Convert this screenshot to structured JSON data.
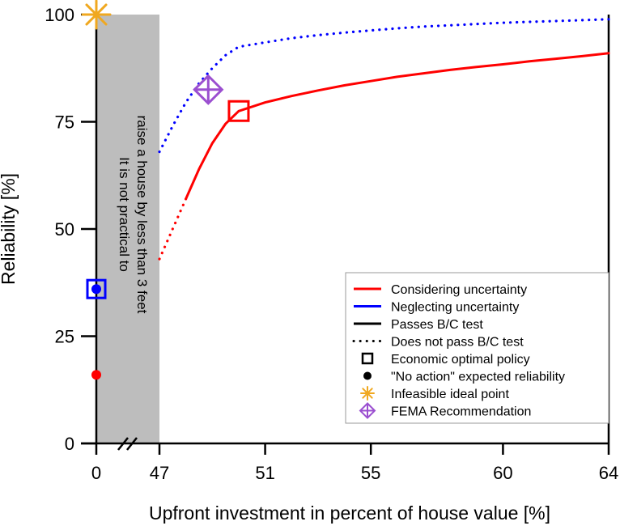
{
  "chart_data": {
    "type": "line",
    "title": "",
    "xlabel": "Upfront investment in percent of house value [%]",
    "ylabel": "Reliability [%]",
    "x_axis_break": "between 0 and 47",
    "x_ticks": [
      "0",
      "47",
      "51",
      "55",
      "60",
      "64"
    ],
    "y_ticks": [
      "0",
      "25",
      "50",
      "75",
      "100"
    ],
    "ylim": [
      0,
      100
    ],
    "shaded_region": {
      "x_range": [
        "0",
        "47"
      ],
      "label_line1": "It is not practical to",
      "label_line2": "raise a house by less than 3 feet",
      "color": "#bdbdbd"
    },
    "series": [
      {
        "name": "Considering uncertainty",
        "color": "#ff0000",
        "segments": [
          {
            "style": "dotted",
            "x": [
              47,
              47.5,
              48
            ],
            "y": [
              43,
              50,
              57
            ]
          },
          {
            "style": "solid",
            "x": [
              48,
              48.5,
              49,
              49.5,
              50,
              51,
              52,
              53,
              54,
              55,
              56,
              57,
              58,
              59,
              60,
              61,
              62,
              63,
              64
            ],
            "y": [
              57,
              64,
              70,
              74.5,
              77.5,
              79.5,
              81,
              82.3,
              83.5,
              84.5,
              85.5,
              86.3,
              87.1,
              87.8,
              88.4,
              89.1,
              89.7,
              90.3,
              91
            ]
          }
        ],
        "no_action_reliability": 16
      },
      {
        "name": "Neglecting uncertainty",
        "color": "#0000ff",
        "segments": [
          {
            "style": "dotted",
            "x": [
              47,
              47.5,
              48,
              48.5,
              49,
              49.5,
              50,
              51,
              52,
              53,
              54,
              55,
              56,
              57,
              58,
              59,
              60,
              61,
              62,
              63,
              64
            ],
            "y": [
              68,
              74,
              79.5,
              84,
              87.5,
              90.5,
              92.5,
              93.5,
              94.5,
              95.2,
              95.8,
              96.3,
              96.8,
              97.2,
              97.5,
              97.8,
              98.1,
              98.3,
              98.5,
              98.7,
              98.9
            ]
          }
        ],
        "no_action_reliability": 36
      }
    ],
    "markers": {
      "optimal_considering": {
        "x": 50,
        "y": 77.5,
        "color": "#ff0000"
      },
      "optimal_neglecting": {
        "x": 0,
        "y": 36,
        "color": "#0000ff"
      },
      "ideal_point": {
        "x": 0,
        "y": 100,
        "color": "#f0a820"
      },
      "fema": {
        "x": 49,
        "y": 82.5,
        "color": "#9b4fd0"
      }
    },
    "legend": {
      "placement": "bottom-right",
      "entries": [
        {
          "label": "Considering uncertainty",
          "symbol": "line",
          "color": "#ff0000"
        },
        {
          "label": "Neglecting uncertainty",
          "symbol": "line",
          "color": "#0000ff"
        },
        {
          "label": "Passes B/C test",
          "symbol": "line",
          "color": "#000000"
        },
        {
          "label": "Does not pass B/C test",
          "symbol": "dots",
          "color": "#000000"
        },
        {
          "label": "Economic optimal policy",
          "symbol": "square",
          "color": "#000000"
        },
        {
          "label": "\"No action\" expected reliability",
          "symbol": "dot",
          "color": "#000000"
        },
        {
          "label": "Infeasible ideal point",
          "symbol": "star",
          "color": "#f0a820"
        },
        {
          "label": "FEMA Recommendation",
          "symbol": "diamond-cross",
          "color": "#9b4fd0"
        }
      ]
    }
  }
}
